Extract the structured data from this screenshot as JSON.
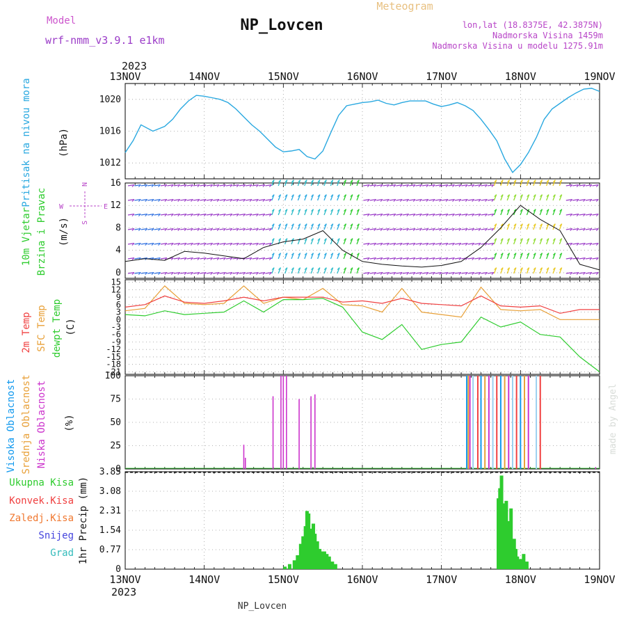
{
  "header": {
    "model_label": "Model",
    "model_name": "wrf-nmm_v3.9.1 e1km",
    "station_title": "NP_Lovcen",
    "meteogram_label": "Meteogram",
    "lonlat": "lon,lat (18.8375E, 42.3875N)",
    "elevation": "Nadmorska Visina 1459m",
    "model_elevation": "Nadmorska Visina u modelu 1275.91m",
    "year_top": "2023",
    "year_bottom": "2023",
    "footer_station": "NP_Lovcen",
    "credit": "made by Angel"
  },
  "colors": {
    "pressure": "#29a8e0",
    "green": "#2ecc2e",
    "red": "#f04040",
    "orange": "#e8a038",
    "magenta": "#cc33cc",
    "purple": "#9b3cc8",
    "blue": "#4444dd",
    "teal": "#33bbbb",
    "sky": "#1199ee"
  },
  "chart_data": [
    {
      "type": "line",
      "name": "pressure",
      "ylabels": [
        "Pritisak na nivou mora",
        "(hPa)"
      ],
      "x_tick_labels": [
        "13NOV",
        "14NOV",
        "15NOV",
        "16NOV",
        "17NOV",
        "18NOV",
        "19NOV"
      ],
      "xlim": [
        0,
        6
      ],
      "ylim": [
        1010,
        1022
      ],
      "yticks": [
        1012,
        1016,
        1020
      ],
      "grid": true,
      "series": [
        {
          "x": [
            0,
            0.1,
            0.2,
            0.35,
            0.5,
            0.6,
            0.7,
            0.8,
            0.9,
            1.0,
            1.1,
            1.2,
            1.3,
            1.4,
            1.5,
            1.6,
            1.7,
            1.8,
            1.9,
            2.0,
            2.1,
            2.2,
            2.3,
            2.4,
            2.5,
            2.6,
            2.7,
            2.8,
            2.9,
            3.0,
            3.1,
            3.2,
            3.3,
            3.4,
            3.5,
            3.6,
            3.7,
            3.8,
            3.9,
            4.0,
            4.1,
            4.2,
            4.3,
            4.4,
            4.5,
            4.6,
            4.7,
            4.8,
            4.9,
            5.0,
            5.1,
            5.2,
            5.3,
            5.4,
            5.5,
            5.6,
            5.7,
            5.8,
            5.9,
            6.0
          ],
          "values": [
            1013.3,
            1014.8,
            1016.8,
            1016.0,
            1016.6,
            1017.5,
            1018.8,
            1019.8,
            1020.5,
            1020.4,
            1020.2,
            1020.0,
            1019.6,
            1018.8,
            1017.8,
            1016.8,
            1016.0,
            1015.0,
            1014.0,
            1013.4,
            1013.5,
            1013.7,
            1012.8,
            1012.5,
            1013.5,
            1015.8,
            1018.0,
            1019.2,
            1019.4,
            1019.6,
            1019.7,
            1019.9,
            1019.5,
            1019.3,
            1019.6,
            1019.8,
            1019.8,
            1019.8,
            1019.4,
            1019.1,
            1019.3,
            1019.6,
            1019.2,
            1018.6,
            1017.5,
            1016.2,
            1014.8,
            1012.5,
            1010.8,
            1011.8,
            1013.3,
            1015.2,
            1017.5,
            1018.8,
            1019.5,
            1020.2,
            1020.8,
            1021.3,
            1021.4,
            1021.0
          ]
        }
      ]
    },
    {
      "type": "line",
      "name": "wind",
      "ylabels": [
        "10m Vjetar",
        "Brzina i Pravac",
        "(m/s)"
      ],
      "compass": [
        "N",
        "W",
        "E",
        "S"
      ],
      "xlim": [
        0,
        6
      ],
      "ylim": [
        -1,
        16
      ],
      "yticks": [
        0,
        4,
        8,
        12,
        16
      ],
      "grid": true,
      "series": [
        {
          "name": "speed",
          "x": [
            0,
            0.25,
            0.5,
            0.75,
            1.0,
            1.25,
            1.5,
            1.75,
            2.0,
            2.25,
            2.5,
            2.75,
            3.0,
            3.25,
            3.5,
            3.75,
            4.0,
            4.25,
            4.5,
            4.75,
            5.0,
            5.25,
            5.5,
            5.75,
            6.0
          ],
          "values": [
            2.0,
            2.5,
            2.2,
            3.8,
            3.5,
            3.0,
            2.5,
            4.5,
            5.5,
            6.0,
            7.5,
            4.0,
            2.0,
            1.5,
            1.2,
            1.0,
            1.3,
            2.0,
            4.5,
            8.0,
            12.0,
            9.5,
            7.5,
            1.5,
            0.5
          ]
        }
      ]
    },
    {
      "type": "line",
      "name": "temperature",
      "ylabels": [
        "2m Temp",
        "SFC Temp",
        "dewpt Temp",
        "(C)"
      ],
      "xlim": [
        0,
        6
      ],
      "ylim": [
        -22,
        16
      ],
      "yticks": [
        15,
        12,
        9,
        6,
        3,
        0,
        -3,
        -6,
        -9,
        -12,
        -15,
        -18,
        -21
      ],
      "grid": true,
      "series": [
        {
          "name": "2m Temp",
          "x": [
            0,
            0.25,
            0.5,
            0.75,
            1.0,
            1.25,
            1.5,
            1.75,
            2.0,
            2.25,
            2.5,
            2.75,
            3.0,
            3.25,
            3.5,
            3.75,
            4.0,
            4.25,
            4.5,
            4.75,
            5.0,
            5.25,
            5.5,
            5.75,
            6.0
          ],
          "values": [
            5.0,
            6.0,
            9.5,
            7.0,
            6.5,
            7.5,
            9.0,
            7.5,
            9.0,
            9.0,
            9.0,
            7.0,
            7.5,
            6.5,
            8.5,
            6.5,
            6.0,
            5.5,
            9.5,
            5.5,
            5.0,
            5.5,
            2.5,
            4.0,
            4.0
          ]
        },
        {
          "name": "SFC Temp",
          "x": [
            0,
            0.25,
            0.5,
            0.75,
            1.0,
            1.25,
            1.5,
            1.75,
            2.0,
            2.25,
            2.5,
            2.75,
            3.0,
            3.25,
            3.5,
            3.75,
            4.0,
            4.25,
            4.5,
            4.75,
            5.0,
            5.25,
            5.5,
            5.75,
            6.0
          ],
          "values": [
            3.5,
            4.5,
            13.5,
            6.5,
            6.0,
            6.5,
            13.5,
            6.5,
            9.0,
            8.0,
            12.5,
            6.0,
            5.5,
            3.0,
            12.5,
            3.0,
            2.0,
            1.0,
            13.0,
            4.0,
            3.5,
            4.0,
            0.0,
            0.0,
            0.0
          ]
        },
        {
          "name": "dewpt Temp",
          "x": [
            0,
            0.25,
            0.5,
            0.75,
            1.0,
            1.25,
            1.5,
            1.75,
            2.0,
            2.25,
            2.5,
            2.75,
            3.0,
            3.25,
            3.5,
            3.75,
            4.0,
            4.25,
            4.5,
            4.75,
            5.0,
            5.25,
            5.5,
            5.75,
            6.0
          ],
          "values": [
            2.0,
            1.5,
            3.5,
            2.0,
            2.5,
            3.0,
            7.5,
            3.0,
            8.0,
            8.0,
            8.5,
            5.0,
            -5.0,
            -8.0,
            -2.0,
            -12.0,
            -10.0,
            -9.0,
            1.0,
            -3.0,
            -1.0,
            -6.0,
            -7.0,
            -15.0,
            -21.0
          ]
        }
      ]
    },
    {
      "type": "bar",
      "name": "cloud",
      "ylabels": [
        "Visoka Oblacnost",
        "Srednja Oblacnost",
        "Niska Oblacnost",
        "(%)"
      ],
      "xlim": [
        0,
        6
      ],
      "ylim": [
        0,
        100
      ],
      "yticks": [
        0,
        25,
        50,
        75,
        100
      ],
      "grid": true,
      "series": [
        {
          "name": "Niska Oblacnost",
          "x": [
            1.5,
            1.52,
            1.87,
            1.97,
            2.0,
            2.04,
            2.2,
            2.35,
            2.4,
            4.5,
            5.95
          ],
          "values": [
            26,
            12,
            78,
            100,
            100,
            100,
            75,
            78,
            80,
            10,
            2
          ]
        },
        {
          "name": "Visoka Oblacnost",
          "x": [
            4.32,
            4.34,
            4.36,
            4.4,
            4.46,
            4.5,
            4.55,
            4.6,
            4.65,
            4.7,
            4.75,
            4.8,
            4.85,
            4.9,
            4.95,
            5.0,
            5.05,
            5.1,
            5.2,
            5.25
          ],
          "values": [
            100,
            100,
            100,
            100,
            100,
            100,
            100,
            100,
            100,
            100,
            100,
            100,
            100,
            100,
            100,
            100,
            100,
            100,
            100,
            100
          ]
        }
      ]
    },
    {
      "type": "bar",
      "name": "precipitation",
      "ylabels": [
        "1hr Precip (mm)"
      ],
      "legend": [
        "Ukupna Kisa",
        "Konvek.Kisa",
        "Zaledj.Kisa",
        "Snijeg",
        "Grad"
      ],
      "xlim": [
        0,
        6
      ],
      "ylim": [
        0,
        3.85
      ],
      "yticks": [
        0,
        0.77,
        1.54,
        2.31,
        3.08,
        3.85
      ],
      "grid": true,
      "series": [
        {
          "name": "Ukupna Kisa",
          "x": [
            2.02,
            2.08,
            2.14,
            2.18,
            2.22,
            2.25,
            2.28,
            2.3,
            2.32,
            2.35,
            2.38,
            2.4,
            2.43,
            2.46,
            2.49,
            2.52,
            2.55,
            2.58,
            2.62,
            2.66,
            4.72,
            4.74,
            4.76,
            4.78,
            4.8,
            4.82,
            4.84,
            4.86,
            4.88,
            4.9,
            4.92,
            4.94,
            4.96,
            4.98,
            5.0,
            5.04,
            5.08
          ],
          "values": [
            0.1,
            0.2,
            0.35,
            0.55,
            1.0,
            1.3,
            1.7,
            2.3,
            2.2,
            1.6,
            1.8,
            1.4,
            1.1,
            0.8,
            0.7,
            0.7,
            0.6,
            0.5,
            0.3,
            0.2,
            2.8,
            3.2,
            3.7,
            2.6,
            2.5,
            2.7,
            1.8,
            1.9,
            2.4,
            1.0,
            1.2,
            0.8,
            0.5,
            0.3,
            0.4,
            0.6,
            0.3
          ]
        }
      ]
    }
  ]
}
